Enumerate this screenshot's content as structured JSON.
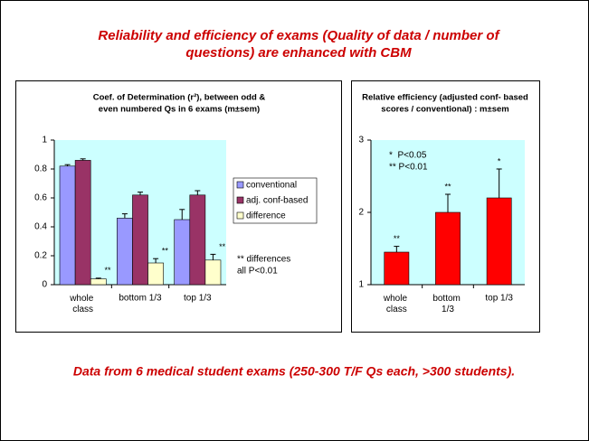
{
  "title": [
    "Reliability and efficiency of exams (Quality of data / number of",
    "questions) are enhanced with CBM"
  ],
  "footer": "Data from 6 medical student exams (250-300 T/F Qs each, >300 students).",
  "chart_data": [
    {
      "type": "bar",
      "title": [
        "Coef. of Determination (r²), between odd &",
        "even numbered Qs in 6 exams (m±sem)"
      ],
      "categories": [
        "whole class",
        "bottom 1/3",
        "top 1/3"
      ],
      "series": [
        {
          "name": "conventional",
          "color": "#9999ff",
          "values": [
            0.82,
            0.46,
            0.45
          ],
          "errors": [
            0.01,
            0.03,
            0.07
          ]
        },
        {
          "name": "adj. conf-based",
          "color": "#993366",
          "values": [
            0.86,
            0.62,
            0.62
          ],
          "errors": [
            0.01,
            0.02,
            0.03
          ]
        },
        {
          "name": "difference",
          "color": "#ffffcc",
          "values": [
            0.04,
            0.15,
            0.17
          ],
          "errors": [
            0.005,
            0.03,
            0.04
          ],
          "significance": [
            "**",
            "**",
            "**"
          ]
        }
      ],
      "ylim": [
        0,
        1
      ],
      "yticks": [
        0,
        0.2,
        0.4,
        0.6,
        0.8,
        1
      ],
      "annotation": [
        "** differences",
        "all P<0.01"
      ],
      "background": "#ccffff",
      "legend": "right"
    },
    {
      "type": "bar",
      "title": [
        "Relative efficiency (adjusted conf- based",
        "scores / conventional) : m±sem"
      ],
      "categories": [
        "whole class",
        "bottom 1/3",
        "top 1/3"
      ],
      "series": [
        {
          "color": "#ff0000",
          "values": [
            1.45,
            2.0,
            2.2
          ],
          "errors": [
            0.08,
            0.25,
            0.4
          ],
          "significance": [
            "**",
            "**",
            "*"
          ]
        }
      ],
      "ylim": [
        1,
        3
      ],
      "yticks": [
        1,
        2,
        3
      ],
      "annotation": [
        "*  P<0.05",
        "** P<0.01"
      ],
      "background": "#ccffff"
    }
  ]
}
